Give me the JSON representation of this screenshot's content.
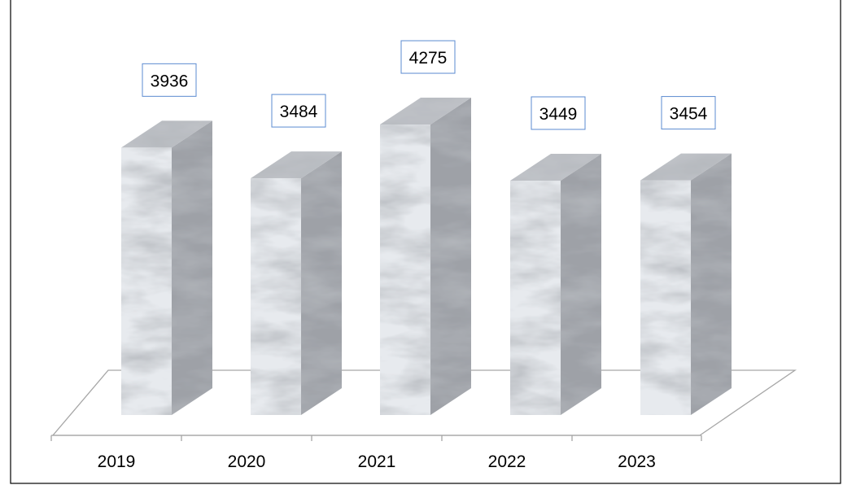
{
  "chart_data": {
    "type": "bar",
    "categories": [
      "2019",
      "2020",
      "2021",
      "2022",
      "2023"
    ],
    "values": [
      3936,
      3484,
      4275,
      3449,
      3454
    ],
    "title": "",
    "xlabel": "",
    "ylabel": "",
    "data_labels": [
      "3936",
      "3484",
      "4275",
      "3449",
      "3454"
    ],
    "grid": false,
    "legend": "none",
    "style": "3d-column",
    "colors": {
      "bar_front": "#e7eaee",
      "bar_side": "#9ea1a7",
      "bar_top": "#bfc2c7",
      "label_border": "#5b8bd0",
      "floor_line": "#a6a6a6",
      "frame": "#000000"
    }
  }
}
